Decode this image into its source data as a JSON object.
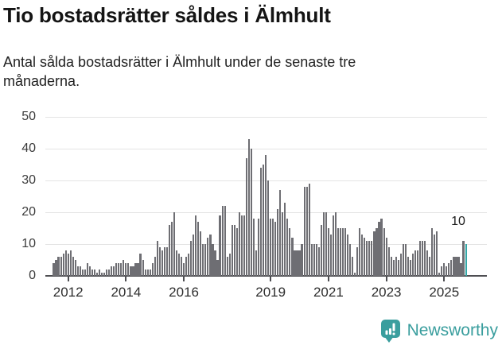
{
  "title": "Tio bostadsrätter såldes i Älmhult",
  "subtitle_lines": [
    "Antal sålda bostadsrätter i Älmhult under de senaste tre",
    "månaderna."
  ],
  "annotation": {
    "label": "10"
  },
  "branding": {
    "name": "Newsworthy",
    "icon": "newsworthy-speech-bubble-bar-chart-icon"
  },
  "colors": {
    "bar": "#6e6e73",
    "highlight": "#35a7a7",
    "axis": "#4e4e52",
    "grid": "#e4e4e4",
    "title_text": "#141414",
    "label_text": "#3c3c3c",
    "brand": "#3a9e9e"
  },
  "chart_data": {
    "type": "bar",
    "title": "Tio bostadsrätter såldes i Älmhult",
    "subtitle": "Antal sålda bostadsrätter i Älmhult under de senaste tre månaderna.",
    "xlabel": "",
    "ylabel": "",
    "ylim": [
      0,
      50
    ],
    "y_ticks": [
      0,
      10,
      20,
      30,
      40,
      50
    ],
    "x_tick_labels": [
      "2012",
      "2014",
      "2016",
      "2019",
      "2021",
      "2023",
      "2025"
    ],
    "grid": true,
    "legend": false,
    "start_month": "2011-07",
    "frequency": "monthly-rolling-3-month-sum",
    "highlight_last_bar": true,
    "last_bar_value_label": "10",
    "values": [
      4,
      5,
      6,
      6,
      7,
      8,
      7,
      8,
      6,
      5,
      3,
      3,
      2,
      2,
      4,
      3,
      2,
      2,
      1,
      2,
      1,
      1,
      2,
      2,
      3,
      3,
      4,
      4,
      4,
      5,
      4,
      4,
      3,
      3,
      4,
      4,
      7,
      5,
      2,
      2,
      2,
      4,
      6,
      11,
      9,
      8,
      9,
      9,
      16,
      17,
      20,
      8,
      7,
      6,
      4,
      6,
      7,
      11,
      13,
      19,
      17,
      14,
      10,
      10,
      12,
      13,
      10,
      8,
      5,
      19,
      22,
      22,
      6,
      7,
      16,
      16,
      15,
      20,
      19,
      19,
      37,
      43,
      40,
      18,
      8,
      18,
      34,
      35,
      38,
      30,
      18,
      18,
      17,
      21,
      27,
      20,
      23,
      18,
      15,
      12,
      8,
      8,
      8,
      10,
      28,
      28,
      29,
      10,
      10,
      10,
      9,
      16,
      20,
      20,
      15,
      13,
      19,
      20,
      15,
      15,
      15,
      15,
      13,
      10,
      6,
      1,
      9,
      15,
      13,
      12,
      11,
      11,
      11,
      14,
      15,
      17,
      18,
      15,
      12,
      9,
      6,
      5,
      6,
      5,
      7,
      10,
      10,
      6,
      5,
      7,
      8,
      8,
      11,
      11,
      11,
      8,
      6,
      15,
      13,
      14,
      1,
      3,
      4,
      3,
      4,
      5,
      6,
      6,
      6,
      4,
      11,
      10
    ]
  }
}
